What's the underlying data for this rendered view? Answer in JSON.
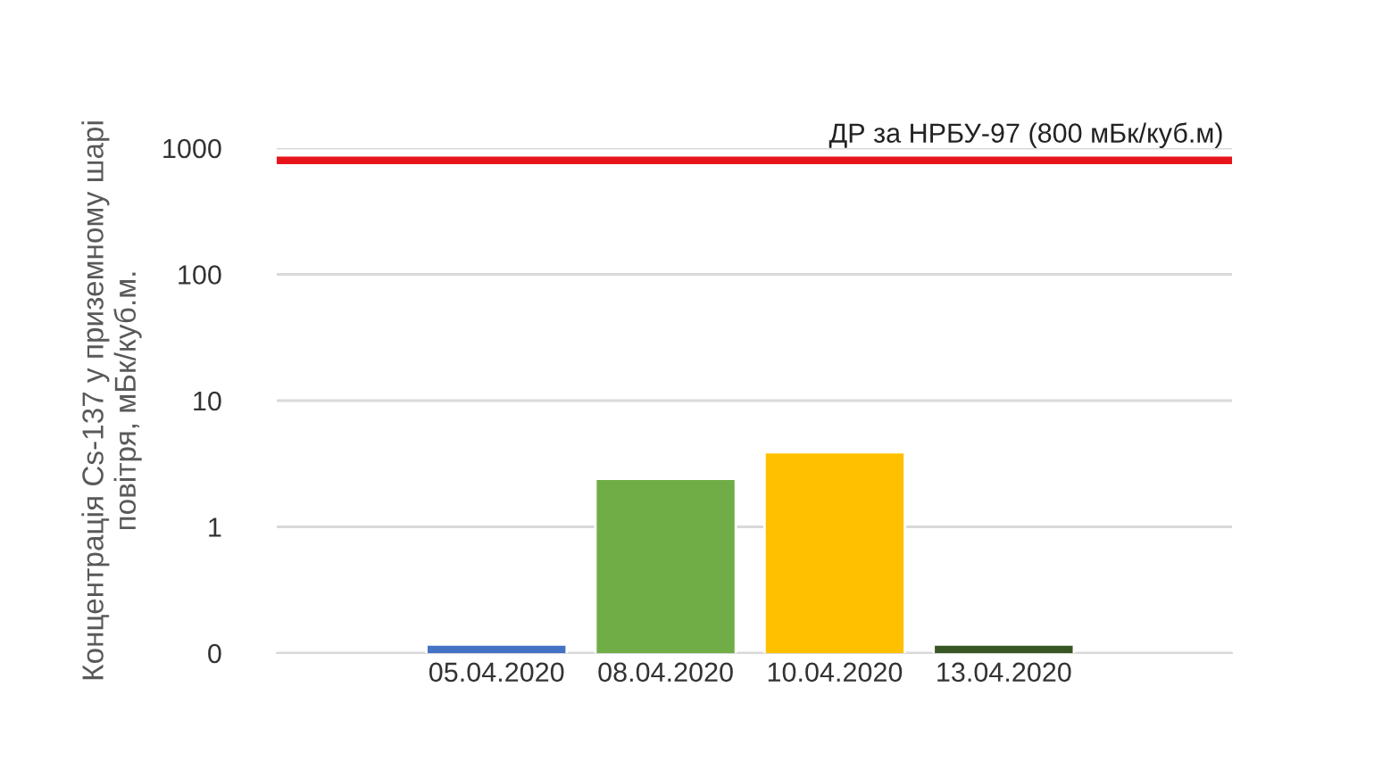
{
  "chart_data": {
    "type": "bar",
    "ylabel": "Концентрація Cs-137 у приземному шарі\nповітря, мБк/куб.м.",
    "categories": [
      "05.04.2020",
      "08.04.2020",
      "10.04.2020",
      "13.04.2020"
    ],
    "values": [
      0.117,
      2.4,
      3.9,
      0.117
    ],
    "colors": [
      "#4472c4",
      "#70ad47",
      "#ffc000",
      "#375623"
    ],
    "log": true,
    "ylim": [
      0.1,
      1000
    ],
    "yticks": [
      {
        "value": 0.1,
        "label": "0"
      },
      1,
      10,
      100,
      1000
    ],
    "grid": "y",
    "ref_lines": [
      {
        "axis": "y",
        "value": 800,
        "label": "ДР за НРБУ-97 (800 мБк/куб.м)",
        "color": "#e8141c",
        "line_style": "solid"
      }
    ]
  }
}
